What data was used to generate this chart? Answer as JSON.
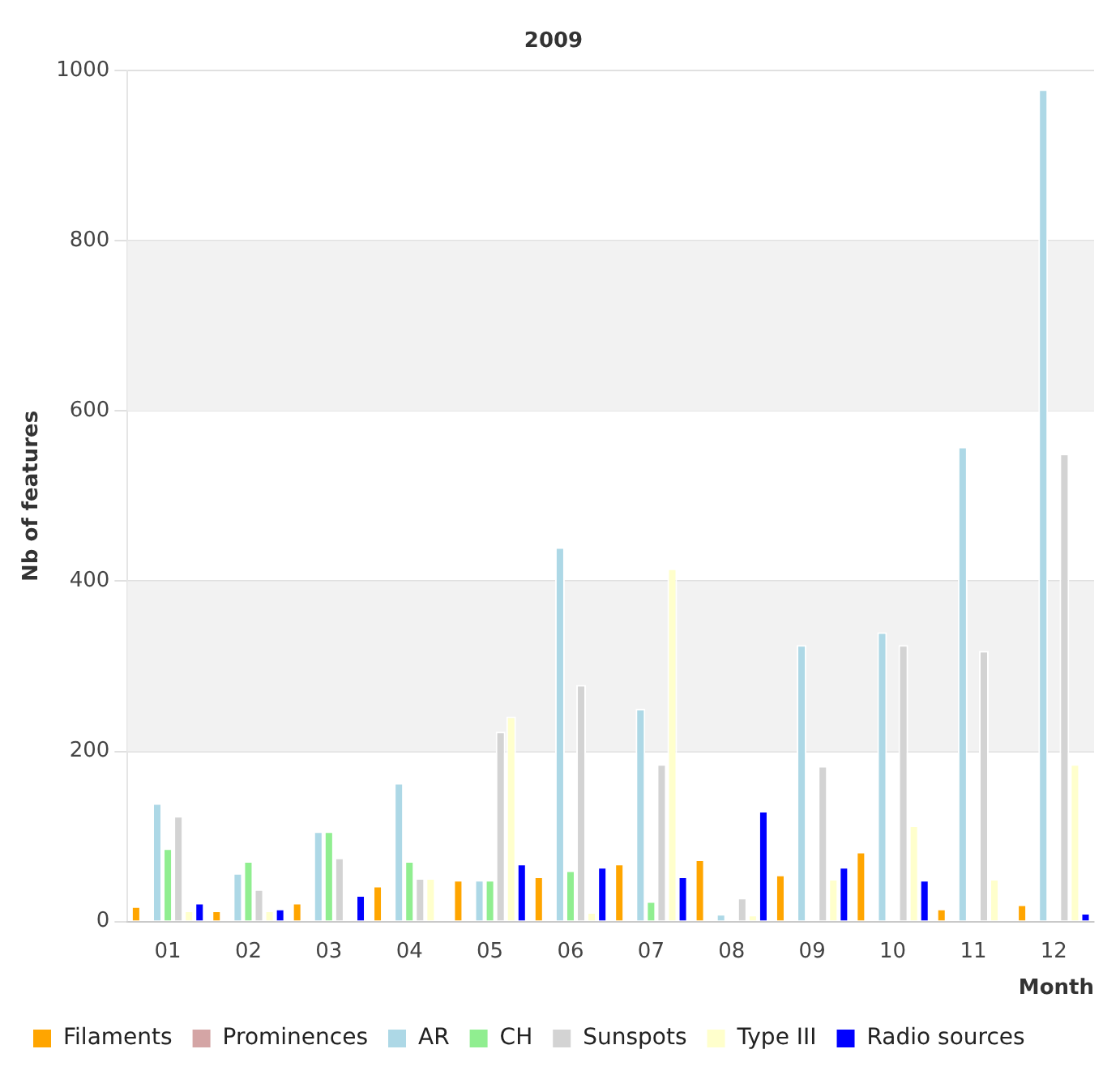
{
  "chart_data": {
    "type": "bar",
    "title": "2009",
    "xlabel": "Month",
    "ylabel": "Nb of features",
    "categories": [
      "01",
      "02",
      "03",
      "04",
      "05",
      "06",
      "07",
      "08",
      "09",
      "10",
      "11",
      "12"
    ],
    "series": [
      {
        "name": "Filaments",
        "color": "#ffa500",
        "values": [
          18,
          13,
          22,
          42,
          49,
          53,
          68,
          73,
          55,
          82,
          15,
          20
        ]
      },
      {
        "name": "Prominences",
        "color": "#d4a5a5",
        "values": [
          null,
          null,
          null,
          null,
          null,
          null,
          null,
          null,
          null,
          null,
          null,
          null
        ]
      },
      {
        "name": "AR",
        "color": "#add8e6",
        "values": [
          139,
          57,
          106,
          163,
          49,
          440,
          250,
          9,
          325,
          340,
          558,
          978
        ]
      },
      {
        "name": "CH",
        "color": "#90ee90",
        "values": [
          86,
          71,
          106,
          71,
          49,
          60,
          24,
          null,
          null,
          null,
          null,
          null
        ]
      },
      {
        "name": "Sunspots",
        "color": "#d3d3d3",
        "values": [
          124,
          38,
          75,
          51,
          223,
          278,
          185,
          28,
          183,
          325,
          318,
          550
        ]
      },
      {
        "name": "Type III",
        "color": "#ffffcc",
        "values": [
          13,
          13,
          null,
          51,
          241,
          11,
          415,
          8,
          50,
          113,
          50,
          185
        ]
      },
      {
        "name": "Radio sources",
        "color": "#0000ff",
        "values": [
          22,
          15,
          31,
          null,
          68,
          64,
          53,
          130,
          64,
          49,
          null,
          10
        ]
      }
    ],
    "ylim": [
      0,
      1000
    ],
    "yticks": [
      0,
      200,
      400,
      600,
      800,
      1000
    ],
    "bands": [
      {
        "axis": "y",
        "from": 200,
        "to": 400,
        "color": "#f2f2f2"
      },
      {
        "axis": "y",
        "from": 600,
        "to": 800,
        "color": "#f2f2f2"
      }
    ],
    "grid": "y",
    "legend": "bottom"
  }
}
